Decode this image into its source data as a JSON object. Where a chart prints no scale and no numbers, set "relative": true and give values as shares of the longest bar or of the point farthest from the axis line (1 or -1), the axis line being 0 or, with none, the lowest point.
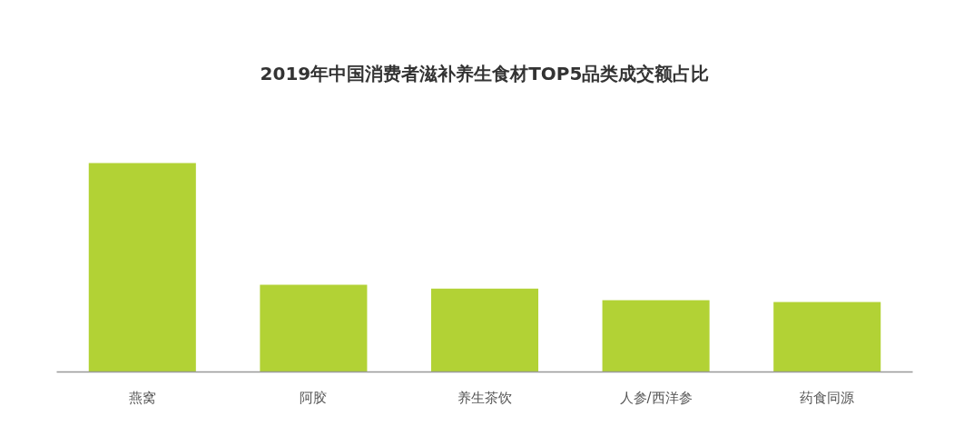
{
  "chart_data": {
    "type": "bar",
    "title": "2019年中国消费者滋补养生食材TOP5品类成交额占比",
    "categories": [
      "燕窝",
      "阿胶",
      "养生茶饮",
      "人参/西洋参",
      "药食同源"
    ],
    "values": [
      1,
      0.417,
      0.399,
      0.343,
      0.335
    ],
    "color": "#b2d235",
    "relative": true,
    "grid": false
  }
}
